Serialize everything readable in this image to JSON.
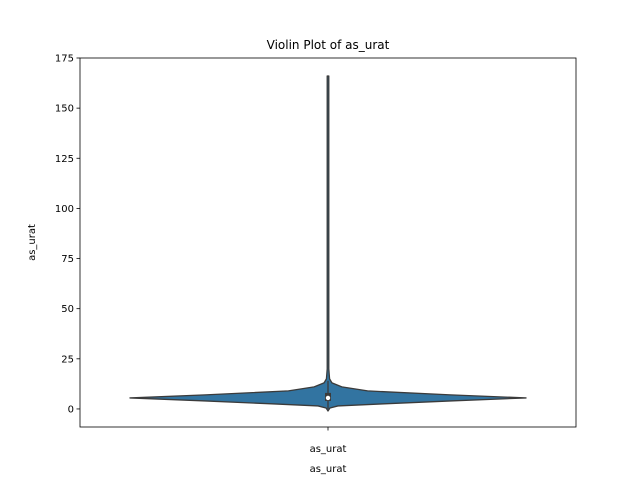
{
  "chart_data": {
    "type": "violin",
    "title": "Violin Plot of as_urat",
    "xlabel": "as_urat",
    "ylabel": "as_urat",
    "categories": [
      "as_urat"
    ],
    "ylim": [
      -9,
      175
    ],
    "yticks": [
      0,
      25,
      50,
      75,
      100,
      125,
      150,
      175
    ],
    "grid": false,
    "series": [
      {
        "name": "as_urat",
        "color": "#3274a1",
        "edge_color": "#3b3b3b",
        "range": [
          -1,
          166
        ],
        "box": {
          "q1": 4,
          "median": 5.5,
          "q3": 8
        },
        "whiskers": [
          0,
          14
        ],
        "density_profile": [
          {
            "y": -1,
            "half_width": 0.0
          },
          {
            "y": 0.5,
            "half_width": 0.01
          },
          {
            "y": 1.5,
            "half_width": 0.05
          },
          {
            "y": 2.5,
            "half_width": 0.27
          },
          {
            "y": 4,
            "half_width": 0.62
          },
          {
            "y": 5.5,
            "half_width": 1.0
          },
          {
            "y": 7,
            "half_width": 0.62
          },
          {
            "y": 9,
            "half_width": 0.2
          },
          {
            "y": 11,
            "half_width": 0.07
          },
          {
            "y": 13,
            "half_width": 0.02
          },
          {
            "y": 15,
            "half_width": 0.008
          },
          {
            "y": 20,
            "half_width": 0.004
          },
          {
            "y": 166,
            "half_width": 0.004
          }
        ]
      }
    ]
  }
}
